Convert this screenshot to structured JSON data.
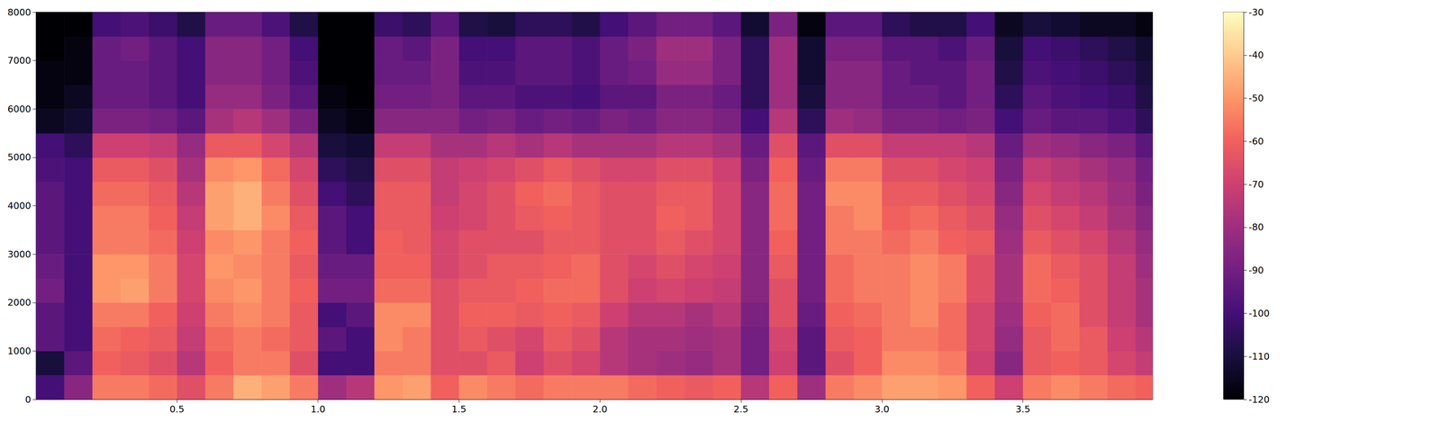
{
  "chart_data": {
    "type": "heatmap",
    "xlim": [
      0,
      3.96
    ],
    "ylim": [
      0,
      8000
    ],
    "xticks": [
      0.5,
      {
        "value": 1,
        "label": "1.0"
      },
      1.5,
      {
        "value": 2,
        "label": "2.0"
      },
      2.5,
      {
        "value": 3,
        "label": "3.0"
      },
      3.5
    ],
    "yticks": [
      0,
      1000,
      2000,
      3000,
      4000,
      5000,
      6000,
      7000,
      8000
    ],
    "x_bins": [
      0,
      0.1,
      0.2,
      0.3,
      0.4,
      0.5,
      0.6,
      0.7,
      0.8,
      0.9,
      1.0,
      1.1,
      1.2,
      1.3,
      1.4,
      1.5,
      1.6,
      1.7,
      1.8,
      1.9,
      2.0,
      2.1,
      2.2,
      2.3,
      2.4,
      2.5,
      2.6,
      2.7,
      2.8,
      2.9,
      3.0,
      3.1,
      3.2,
      3.3,
      3.4,
      3.5,
      3.6,
      3.7,
      3.8,
      3.9,
      3.96
    ],
    "y_bins": [
      0,
      500,
      1000,
      1500,
      2000,
      2500,
      3000,
      3500,
      4000,
      4500,
      5000,
      5500,
      6000,
      6500,
      7000,
      7500,
      8000
    ],
    "cells": [
      [
        -100,
        -85,
        -55,
        -55,
        -58,
        -65,
        -55,
        -45,
        -48,
        -55,
        -80,
        -75,
        -50,
        -48,
        -60,
        -52,
        -55,
        -58,
        -55,
        -55,
        -55,
        -58,
        -60,
        -62,
        -60,
        -75,
        -60,
        -80,
        -55,
        -52,
        -48,
        -48,
        -50,
        -60,
        -70,
        -55,
        -52,
        -55,
        -58,
        -60
      ],
      [
        -110,
        -95,
        -60,
        -62,
        -65,
        -75,
        -60,
        -55,
        -55,
        -65,
        -100,
        -100,
        -55,
        -55,
        -65,
        -65,
        -62,
        -70,
        -65,
        -68,
        -75,
        -78,
        -80,
        -82,
        -78,
        -90,
        -70,
        -95,
        -65,
        -60,
        -52,
        -52,
        -55,
        -70,
        -85,
        -62,
        -60,
        -62,
        -68,
        -72
      ],
      [
        -95,
        -100,
        -58,
        -60,
        -62,
        -72,
        -58,
        -55,
        -58,
        -62,
        -95,
        -100,
        -52,
        -55,
        -65,
        -62,
        -65,
        -68,
        -62,
        -65,
        -75,
        -78,
        -78,
        -80,
        -78,
        -90,
        -68,
        -95,
        -62,
        -60,
        -55,
        -55,
        -58,
        -68,
        -82,
        -62,
        -58,
        -62,
        -70,
        -75
      ],
      [
        -95,
        -100,
        -55,
        -55,
        -60,
        -70,
        -55,
        -52,
        -55,
        -62,
        -100,
        -95,
        -52,
        -52,
        -65,
        -60,
        -60,
        -62,
        -60,
        -62,
        -70,
        -75,
        -75,
        -78,
        -75,
        -88,
        -65,
        -92,
        -60,
        -58,
        -55,
        -52,
        -58,
        -68,
        -80,
        -60,
        -58,
        -65,
        -72,
        -78
      ],
      [
        -90,
        -100,
        -50,
        -48,
        -55,
        -68,
        -52,
        -50,
        -55,
        -60,
        -90,
        -90,
        -58,
        -58,
        -65,
        -62,
        -62,
        -60,
        -58,
        -58,
        -65,
        -70,
        -68,
        -70,
        -72,
        -85,
        -65,
        -90,
        -58,
        -55,
        -55,
        -52,
        -55,
        -65,
        -78,
        -58,
        -60,
        -65,
        -72,
        -78
      ],
      [
        -92,
        -100,
        -50,
        -50,
        -55,
        -68,
        -50,
        -52,
        -55,
        -62,
        -92,
        -92,
        -60,
        -60,
        -68,
        -65,
        -62,
        -62,
        -60,
        -58,
        -65,
        -68,
        -65,
        -68,
        -70,
        -85,
        -62,
        -90,
        -58,
        -55,
        -55,
        -52,
        -55,
        -65,
        -78,
        -58,
        -62,
        -65,
        -72,
        -80
      ],
      [
        -95,
        -100,
        -55,
        -55,
        -58,
        -70,
        -52,
        -50,
        -55,
        -60,
        -95,
        -100,
        -60,
        -62,
        -68,
        -65,
        -65,
        -65,
        -62,
        -62,
        -65,
        -65,
        -62,
        -65,
        -68,
        -85,
        -60,
        -90,
        -55,
        -55,
        -58,
        -55,
        -60,
        -62,
        -80,
        -62,
        -65,
        -68,
        -75,
        -82
      ],
      [
        -95,
        -100,
        -55,
        -55,
        -60,
        -72,
        -48,
        -45,
        -52,
        -62,
        -95,
        -100,
        -62,
        -62,
        -70,
        -68,
        -65,
        -62,
        -60,
        -62,
        -65,
        -65,
        -60,
        -62,
        -68,
        -85,
        -58,
        -90,
        -55,
        -52,
        -60,
        -58,
        -62,
        -65,
        -82,
        -65,
        -68,
        -72,
        -78,
        -85
      ],
      [
        -95,
        -100,
        -58,
        -58,
        -62,
        -75,
        -48,
        -45,
        -55,
        -65,
        -100,
        -105,
        -62,
        -62,
        -72,
        -68,
        -65,
        -60,
        -58,
        -62,
        -65,
        -65,
        -62,
        -62,
        -68,
        -85,
        -58,
        -90,
        -52,
        -52,
        -62,
        -62,
        -65,
        -68,
        -85,
        -68,
        -72,
        -75,
        -80,
        -88
      ],
      [
        -98,
        -100,
        -62,
        -62,
        -65,
        -78,
        -52,
        -50,
        -58,
        -68,
        -105,
        -108,
        -65,
        -65,
        -72,
        -70,
        -68,
        -65,
        -62,
        -65,
        -68,
        -68,
        -65,
        -65,
        -70,
        -88,
        -60,
        -92,
        -55,
        -55,
        -65,
        -65,
        -68,
        -70,
        -88,
        -72,
        -75,
        -78,
        -82,
        -90
      ],
      [
        -100,
        -105,
        -70,
        -70,
        -72,
        -82,
        -62,
        -62,
        -68,
        -75,
        -110,
        -112,
        -72,
        -72,
        -78,
        -78,
        -75,
        -78,
        -75,
        -78,
        -78,
        -78,
        -75,
        -75,
        -78,
        -92,
        -65,
        -95,
        -65,
        -65,
        -72,
        -72,
        -72,
        -75,
        -92,
        -80,
        -82,
        -85,
        -88,
        -95
      ],
      [
        -115,
        -112,
        -88,
        -88,
        -90,
        -95,
        -78,
        -75,
        -80,
        -88,
        -115,
        -118,
        -85,
        -85,
        -85,
        -90,
        -88,
        -92,
        -90,
        -92,
        -88,
        -90,
        -85,
        -85,
        -88,
        -100,
        -75,
        -105,
        -80,
        -82,
        -88,
        -88,
        -90,
        -88,
        -100,
        -92,
        -95,
        -95,
        -98,
        -105
      ],
      [
        -118,
        -115,
        -92,
        -92,
        -95,
        -100,
        -82,
        -82,
        -88,
        -95,
        -118,
        -120,
        -90,
        -90,
        -88,
        -95,
        -95,
        -98,
        -98,
        -100,
        -95,
        -95,
        -88,
        -88,
        -92,
        -105,
        -80,
        -110,
        -85,
        -85,
        -92,
        -92,
        -95,
        -90,
        -105,
        -95,
        -98,
        -100,
        -102,
        -108
      ],
      [
        -118,
        -118,
        -92,
        -92,
        -95,
        -100,
        -85,
        -85,
        -90,
        -98,
        -120,
        -120,
        -92,
        -92,
        -88,
        -98,
        -98,
        -95,
        -95,
        -98,
        -92,
        -90,
        -82,
        -82,
        -88,
        -105,
        -80,
        -112,
        -85,
        -85,
        -92,
        -95,
        -95,
        -90,
        -108,
        -98,
        -100,
        -102,
        -105,
        -110
      ],
      [
        -120,
        -118,
        -92,
        -90,
        -95,
        -100,
        -85,
        -85,
        -90,
        -100,
        -120,
        -120,
        -92,
        -95,
        -88,
        -100,
        -100,
        -95,
        -95,
        -98,
        -92,
        -88,
        -80,
        -80,
        -88,
        -105,
        -80,
        -112,
        -88,
        -88,
        -95,
        -95,
        -98,
        -92,
        -110,
        -100,
        -102,
        -105,
        -108,
        -112
      ],
      [
        -120,
        -120,
        -100,
        -98,
        -102,
        -108,
        -92,
        -92,
        -98,
        -108,
        -120,
        -120,
        -102,
        -105,
        -95,
        -108,
        -110,
        -105,
        -105,
        -108,
        -100,
        -95,
        -90,
        -90,
        -95,
        -112,
        -88,
        -118,
        -95,
        -95,
        -105,
        -108,
        -108,
        -100,
        -115,
        -110,
        -112,
        -115,
        -115,
        -118
      ]
    ],
    "colorbar_range": [
      -120,
      -30
    ],
    "colorbar_ticks": [
      -120,
      -110,
      -100,
      -90,
      -80,
      -70,
      -60,
      -50,
      -40,
      -30
    ]
  }
}
